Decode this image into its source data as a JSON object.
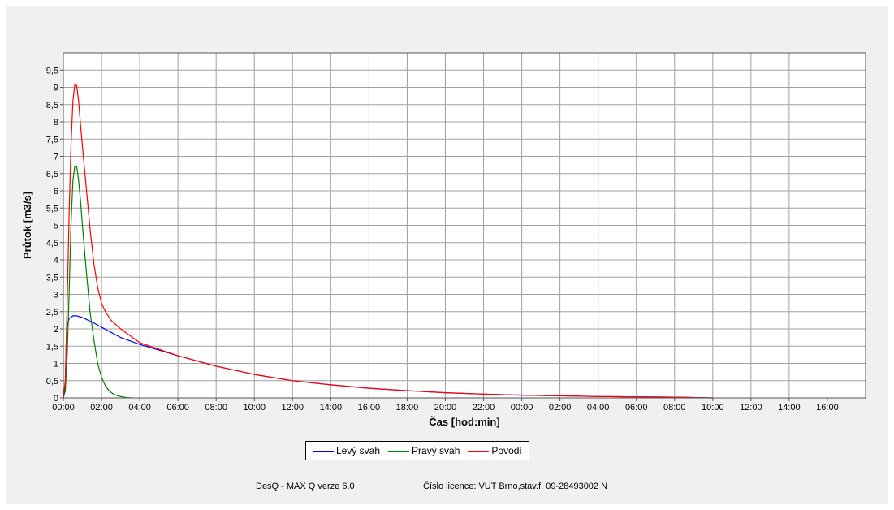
{
  "chart_data": {
    "type": "line",
    "xlabel": "Čas [hod:min]",
    "ylabel": "Průtok [m3/s]",
    "ylim": [
      0,
      10
    ],
    "xlim_hours": [
      0,
      42
    ],
    "y_ticks": [
      "0",
      "0,5",
      "1",
      "1,5",
      "2",
      "2,5",
      "3",
      "3,5",
      "4",
      "4,5",
      "5",
      "5,5",
      "6",
      "6,5",
      "7",
      "7,5",
      "8",
      "8,5",
      "9",
      "9,5"
    ],
    "x_ticks": [
      "00:00",
      "02:00",
      "04:00",
      "06:00",
      "08:00",
      "10:00",
      "12:00",
      "14:00",
      "16:00",
      "18:00",
      "20:00",
      "22:00",
      "00:00",
      "02:00",
      "04:00",
      "06:00",
      "08:00",
      "10:00",
      "12:00",
      "14:00",
      "16:00"
    ],
    "grid": true,
    "legend_position": "bottom-center",
    "series": [
      {
        "name": "Levý svah",
        "color": "#0000ff",
        "x": [
          0,
          0.1,
          0.15,
          0.2,
          0.3,
          0.5,
          0.7,
          1.0,
          1.5,
          2.0,
          3.0,
          4.0,
          6.0,
          8.0,
          10.0,
          12.0,
          14.0,
          16.0,
          18.0,
          20.0,
          22.0,
          24.0,
          26.0,
          28.0,
          30.0,
          32.0,
          34.0
        ],
        "y": [
          0,
          0.3,
          1.5,
          2.1,
          2.3,
          2.38,
          2.38,
          2.33,
          2.2,
          2.05,
          1.75,
          1.55,
          1.22,
          0.92,
          0.68,
          0.5,
          0.38,
          0.28,
          0.21,
          0.15,
          0.11,
          0.08,
          0.06,
          0.04,
          0.03,
          0.02,
          0.0
        ]
      },
      {
        "name": "Pravý svah",
        "color": "#008000",
        "x": [
          0,
          0.1,
          0.2,
          0.3,
          0.4,
          0.5,
          0.6,
          0.7,
          0.8,
          0.9,
          1.0,
          1.2,
          1.4,
          1.6,
          1.8,
          2.0,
          2.2,
          2.4,
          2.6,
          2.8,
          3.0,
          3.3,
          3.6
        ],
        "y": [
          0,
          0.2,
          1.2,
          3.0,
          5.0,
          6.3,
          6.72,
          6.7,
          6.3,
          5.7,
          5.0,
          3.7,
          2.5,
          1.7,
          1.0,
          0.6,
          0.35,
          0.2,
          0.12,
          0.07,
          0.04,
          0.01,
          0.0
        ]
      },
      {
        "name": "Povodí",
        "color": "#ff0000",
        "x": [
          0,
          0.1,
          0.2,
          0.3,
          0.4,
          0.5,
          0.6,
          0.7,
          0.8,
          0.9,
          1.0,
          1.2,
          1.4,
          1.6,
          1.8,
          2.0,
          2.2,
          2.5,
          3.0,
          4.0,
          6.0,
          8.0,
          10.0,
          12.0,
          14.0,
          16.0,
          18.0,
          20.0,
          22.0,
          24.0,
          26.0,
          28.0,
          30.0,
          32.0,
          34.0
        ],
        "y": [
          0,
          0.5,
          2.7,
          5.3,
          7.3,
          8.6,
          9.08,
          9.05,
          8.6,
          7.9,
          7.3,
          6.1,
          4.9,
          3.9,
          3.2,
          2.75,
          2.5,
          2.25,
          2.0,
          1.6,
          1.22,
          0.92,
          0.68,
          0.5,
          0.38,
          0.28,
          0.21,
          0.15,
          0.11,
          0.08,
          0.06,
          0.04,
          0.03,
          0.02,
          0.0
        ]
      }
    ]
  },
  "footer": {
    "product": "DesQ - MAX Q verze 6.0",
    "license": "Číslo licence: VUT Brno,stav.f. 09-28493002 N"
  }
}
